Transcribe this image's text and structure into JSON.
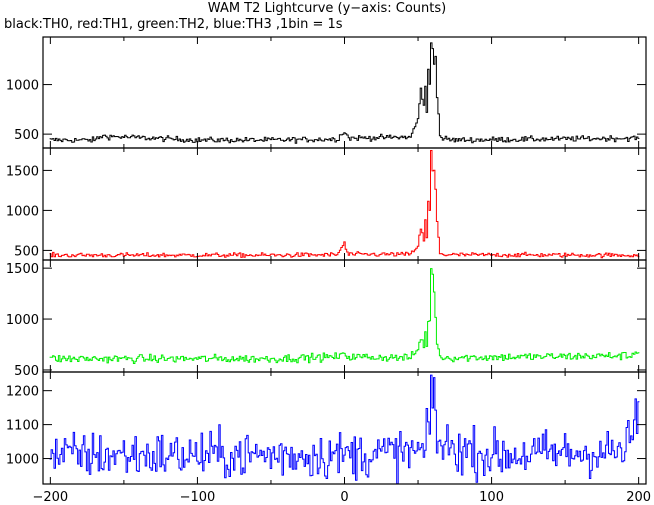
{
  "chart_data": {
    "type": "line",
    "title": "WAM T2 Lightcurve (y−axis: Counts)",
    "subtitle": "black:TH0, red:TH1, green:TH2, blue:TH3 ,1bin = 1s",
    "xlabel": "",
    "xlim": [
      -205,
      205
    ],
    "x_ticks": [
      -200,
      -100,
      0,
      100,
      200
    ],
    "x_tick_labels": [
      "−200",
      "−100",
      "0",
      "100",
      "200"
    ],
    "bin_size_s": 1,
    "grid": false,
    "series": [
      {
        "name": "TH0",
        "color": "#000000",
        "ylim": [
          360,
          1480
        ],
        "y_ticks": [
          500,
          1000
        ],
        "y_tick_labels": [
          "500",
          "1000"
        ],
        "baseline": 440,
        "noise": 14,
        "x": [
          -200,
          -170,
          -165,
          -100,
          -50,
          -5,
          0,
          3,
          45,
          50,
          52,
          54,
          55,
          56,
          57,
          58,
          59,
          60,
          61,
          62,
          63,
          65,
          68,
          75,
          200
        ],
        "values": [
          440,
          440,
          480,
          440,
          440,
          450,
          530,
          460,
          470,
          650,
          950,
          800,
          980,
          700,
          1150,
          1000,
          1420,
          1380,
          1200,
          1300,
          900,
          480,
          450,
          440,
          460
        ]
      },
      {
        "name": "TH1",
        "color": "#ff0000",
        "ylim": [
          380,
          1780
        ],
        "y_ticks": [
          500,
          1000,
          1500
        ],
        "y_tick_labels": [
          "500",
          "1000",
          "1500"
        ],
        "baseline": 440,
        "noise": 14,
        "x": [
          -200,
          -50,
          -5,
          -1,
          0,
          1,
          3,
          45,
          50,
          52,
          54,
          55,
          56,
          57,
          58,
          59,
          60,
          61,
          62,
          63,
          65,
          68,
          200
        ],
        "values": [
          440,
          440,
          445,
          560,
          610,
          500,
          450,
          450,
          560,
          780,
          620,
          880,
          650,
          1100,
          1000,
          1750,
          1480,
          1500,
          1250,
          860,
          470,
          445,
          440
        ]
      },
      {
        "name": "TH2",
        "color": "#00ee00",
        "ylim": [
          480,
          1580
        ],
        "y_ticks": [
          500,
          1000,
          1500
        ],
        "y_tick_labels": [
          "500",
          "1000",
          "1500"
        ],
        "baseline": 610,
        "noise": 20,
        "x": [
          -200,
          -50,
          -2,
          0,
          2,
          45,
          50,
          52,
          54,
          55,
          56,
          57,
          58,
          59,
          60,
          61,
          62,
          63,
          65,
          68,
          195,
          200
        ],
        "values": [
          610,
          610,
          630,
          680,
          630,
          620,
          700,
          820,
          740,
          860,
          760,
          950,
          1000,
          1500,
          1420,
          1250,
          1050,
          760,
          640,
          620,
          640,
          700
        ]
      },
      {
        "name": "TH3",
        "color": "#0000ff",
        "ylim": [
          925,
          1255
        ],
        "y_ticks": [
          1000,
          1100,
          1200
        ],
        "y_tick_labels": [
          "1000",
          "1100",
          "1200"
        ],
        "baseline": 1010,
        "noise": 35,
        "x": [
          -200,
          -100,
          0,
          55,
          58,
          59,
          60,
          61,
          62,
          63,
          100,
          190,
          195,
          200
        ],
        "values": [
          1010,
          1010,
          1010,
          1020,
          1100,
          1230,
          1160,
          1200,
          1180,
          1040,
          1010,
          1020,
          1060,
          1150
        ]
      }
    ]
  }
}
